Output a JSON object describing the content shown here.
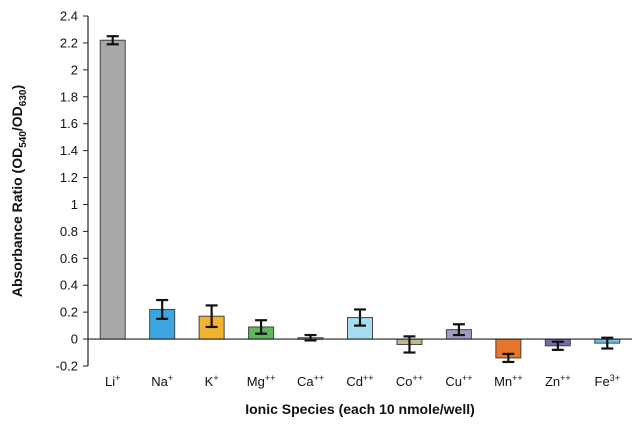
{
  "chart_data": {
    "type": "bar",
    "title": "",
    "xlabel": "Ionic Species (each 10 nmole/well)",
    "ylabel": {
      "pre": "Absorbance Ratio (OD",
      "sub1": "540",
      "mid": "/OD",
      "sub2": "630",
      "post": ")"
    },
    "ylim": [
      -0.2,
      2.4
    ],
    "ytick_step": 0.2,
    "yticks": [
      "-0.2",
      "0",
      "0.2",
      "0.4",
      "0.6",
      "0.8",
      "1",
      "1.2",
      "1.4",
      "1.6",
      "1.8",
      "2",
      "2.2",
      "2.4"
    ],
    "grid": false,
    "categories": [
      {
        "base": "Li",
        "sup": "+"
      },
      {
        "base": "Na",
        "sup": "+"
      },
      {
        "base": "K",
        "sup": "+"
      },
      {
        "base": "Mg",
        "sup": "++"
      },
      {
        "base": "Ca",
        "sup": "++"
      },
      {
        "base": "Cd",
        "sup": "++"
      },
      {
        "base": "Co",
        "sup": "++"
      },
      {
        "base": "Cu",
        "sup": "++"
      },
      {
        "base": "Mn",
        "sup": "++"
      },
      {
        "base": "Zn",
        "sup": "++"
      },
      {
        "base": "Fe",
        "sup": "3+"
      }
    ],
    "values": [
      2.22,
      0.22,
      0.17,
      0.09,
      0.01,
      0.16,
      -0.04,
      0.07,
      -0.14,
      -0.05,
      -0.03
    ],
    "errors": [
      0.03,
      0.07,
      0.08,
      0.05,
      0.02,
      0.06,
      0.06,
      0.04,
      0.03,
      0.03,
      0.04
    ],
    "colors": [
      "#a8a8a8",
      "#3ba6e0",
      "#f2b330",
      "#5cb85c",
      "#d0c8a8",
      "#a8dcf0",
      "#c2b888",
      "#a898c8",
      "#e8762a",
      "#7a68a8",
      "#6cc0e8"
    ]
  }
}
